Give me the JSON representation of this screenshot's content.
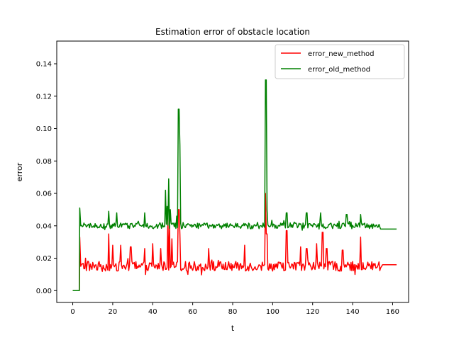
{
  "chart_data": {
    "type": "line",
    "title": "Estimation error of obstacle location",
    "xlabel": "t",
    "ylabel": "error",
    "xlim": [
      -8,
      168
    ],
    "ylim": [
      -0.0073,
      0.154
    ],
    "xticks": [
      0,
      20,
      40,
      60,
      80,
      100,
      120,
      140,
      160
    ],
    "yticks": [
      0.0,
      0.02,
      0.04,
      0.06,
      0.08,
      0.1,
      0.12,
      0.14
    ],
    "ytick_labels": [
      "0.00",
      "0.02",
      "0.04",
      "0.06",
      "0.08",
      "0.10",
      "0.12",
      "0.14"
    ],
    "grid": false,
    "legend_position": "top-right",
    "series": [
      {
        "name": "error_new_method",
        "color": "#ff0000",
        "base_level": 0.015,
        "noise_amplitude": 0.003,
        "start_segment": [
          [
            0,
            0.0
          ],
          [
            3.3,
            0.0
          ],
          [
            3.5,
            0.033
          ],
          [
            4.0,
            0.015
          ]
        ],
        "end_segment": [
          [
            154,
            0.014
          ],
          [
            155,
            0.016
          ],
          [
            162,
            0.016
          ]
        ],
        "spikes": [
          [
            6.5,
            0.02
          ],
          [
            18,
            0.035
          ],
          [
            20,
            0.028
          ],
          [
            24,
            0.028
          ],
          [
            29,
            0.027
          ],
          [
            36,
            0.026
          ],
          [
            40,
            0.029
          ],
          [
            44,
            0.026
          ],
          [
            47.5,
            0.047
          ],
          [
            48.5,
            0.04
          ],
          [
            49.5,
            0.032
          ],
          [
            53,
            0.05
          ],
          [
            53.5,
            0.035
          ],
          [
            68,
            0.026
          ],
          [
            86,
            0.028
          ],
          [
            96.5,
            0.06
          ],
          [
            97,
            0.035
          ],
          [
            107,
            0.037
          ],
          [
            114,
            0.027
          ],
          [
            117,
            0.026
          ],
          [
            122,
            0.029
          ],
          [
            125,
            0.036
          ],
          [
            127,
            0.026
          ],
          [
            135,
            0.025
          ],
          [
            144,
            0.033
          ]
        ]
      },
      {
        "name": "error_old_method",
        "color": "#008000",
        "base_level": 0.04,
        "noise_amplitude": 0.0018,
        "start_segment": [
          [
            0,
            0.0
          ],
          [
            3.3,
            0.0
          ],
          [
            3.5,
            0.051
          ],
          [
            4.0,
            0.04
          ]
        ],
        "end_segment": [
          [
            154,
            0.038
          ],
          [
            155,
            0.038
          ],
          [
            162,
            0.038
          ]
        ],
        "spikes": [
          [
            18,
            0.049
          ],
          [
            22,
            0.048
          ],
          [
            36,
            0.048
          ],
          [
            46.5,
            0.062
          ],
          [
            47.3,
            0.052
          ],
          [
            48,
            0.069
          ],
          [
            48.7,
            0.05
          ],
          [
            52,
            0.046
          ],
          [
            53,
            0.112
          ],
          [
            53.5,
            0.09
          ],
          [
            96.3,
            0.147
          ],
          [
            96.6,
            0.13
          ],
          [
            97.2,
            0.05
          ],
          [
            107,
            0.048
          ],
          [
            117,
            0.048
          ],
          [
            124,
            0.048
          ],
          [
            137,
            0.047
          ],
          [
            144,
            0.047
          ]
        ]
      }
    ]
  }
}
